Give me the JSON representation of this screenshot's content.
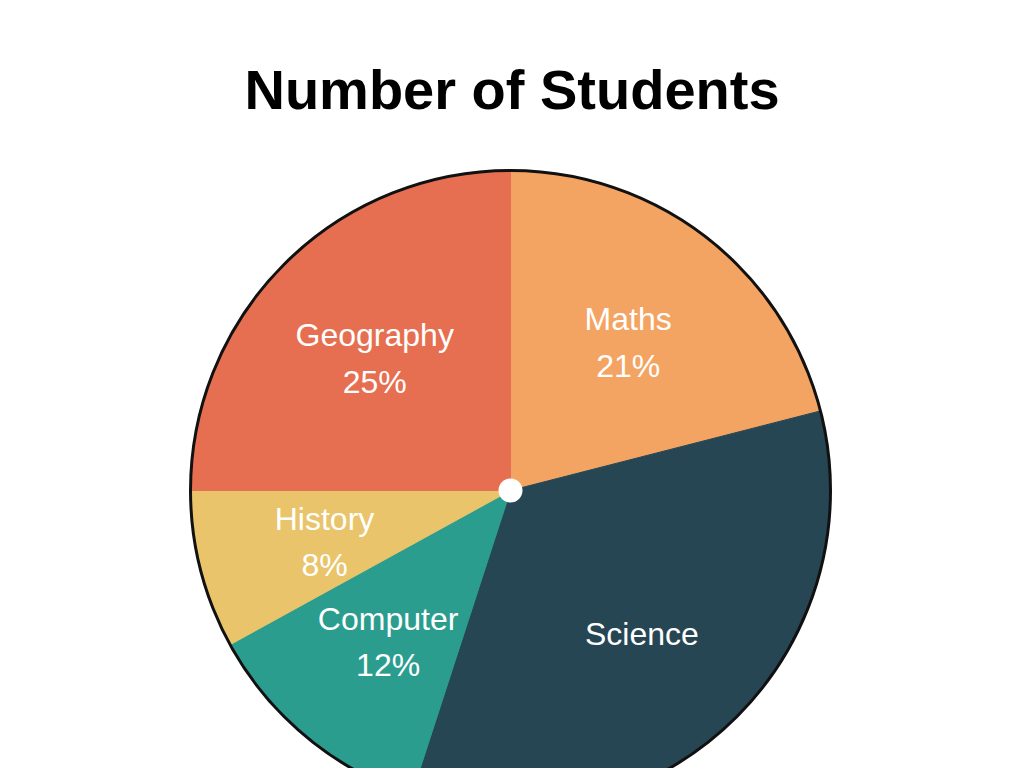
{
  "chart_data": {
    "type": "pie",
    "title": "Number of Students",
    "categories": [
      "Maths",
      "Science",
      "Computer",
      "History",
      "Geography"
    ],
    "values": [
      21,
      34,
      12,
      8,
      25
    ],
    "value_labels": [
      "21%",
      null,
      "12%",
      "8%",
      "25%"
    ],
    "colors": [
      "#f4a462",
      "#264653",
      "#2a9d8f",
      "#e9c46a",
      "#e76f51"
    ],
    "data_labels": true
  }
}
